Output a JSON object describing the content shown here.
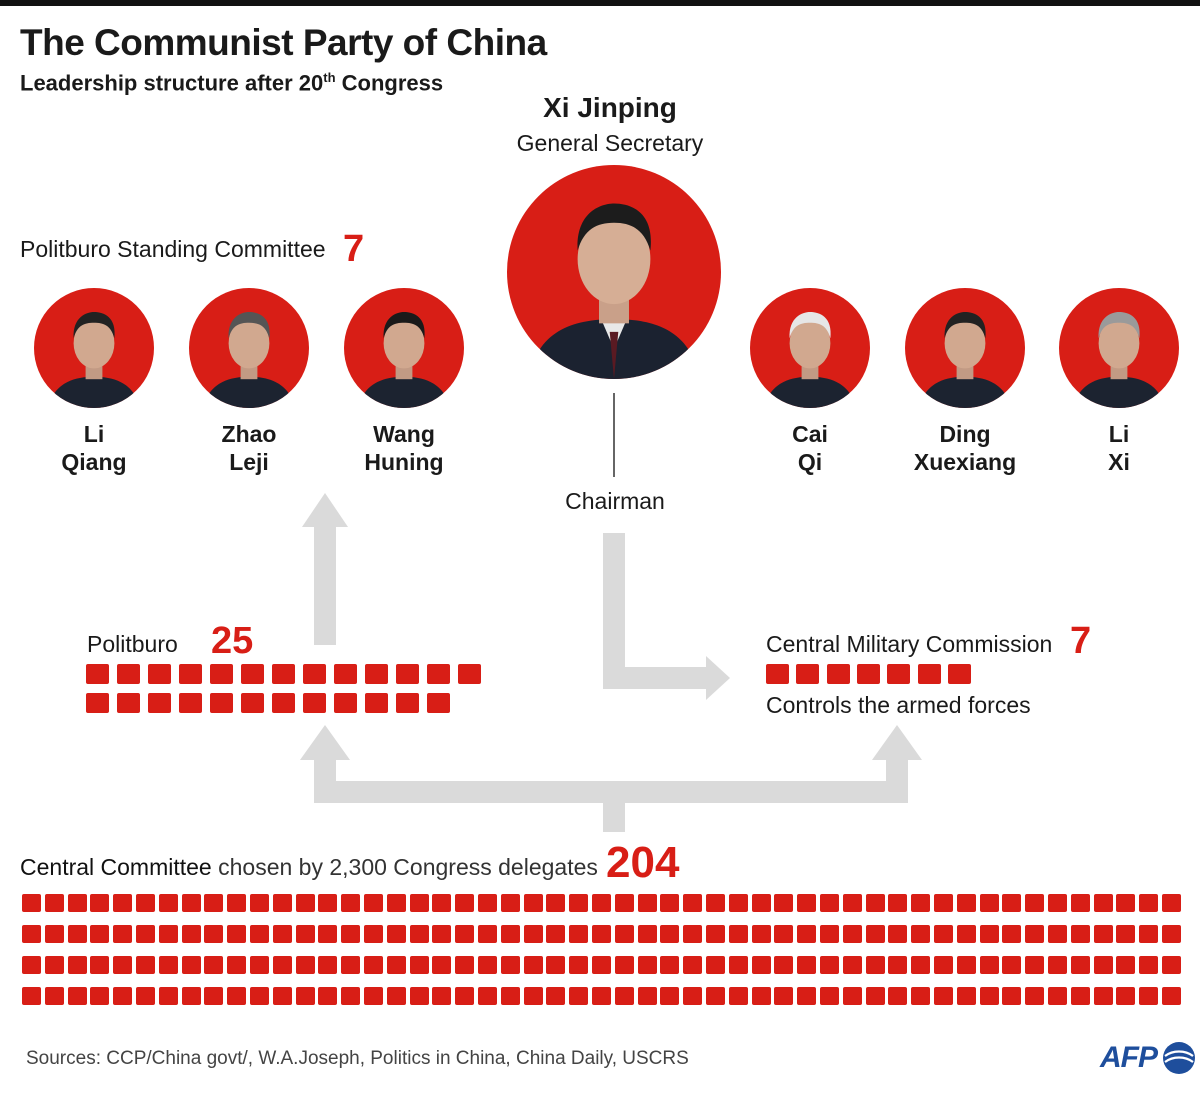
{
  "title": "The Communist Party of China",
  "subtitle": {
    "text": "Leadership structure after 20",
    "sup": "th",
    "tail": " Congress"
  },
  "leader": {
    "name": "Xi Jinping",
    "role": "General Secretary",
    "chairman_label": "Chairman"
  },
  "psc": {
    "label": "Politburo Standing Committee",
    "count": "7",
    "members": [
      {
        "first": "Li",
        "last": "Qiang"
      },
      {
        "first": "Zhao",
        "last": "Leji"
      },
      {
        "first": "Wang",
        "last": "Huning"
      },
      {
        "first": "Cai",
        "last": "Qi"
      },
      {
        "first": "Ding",
        "last": "Xuexiang"
      },
      {
        "first": "Li",
        "last": "Xi"
      }
    ]
  },
  "politburo": {
    "label": "Politburo",
    "count": "25",
    "members": 25
  },
  "cmc": {
    "label": "Central Military Commission",
    "count": "7",
    "members": 7,
    "note": "Controls the armed forces"
  },
  "central_committee": {
    "label_bold": "Central Committee",
    "label_rest": " chosen by 2,300 Congress delegates",
    "count": "204",
    "members": 204
  },
  "sources": "Sources: CCP/China govt/, W.A.Joseph, Politics in China, China Daily, USCRS",
  "logo": {
    "text": "AFP",
    "icon": "afp-logo-icon"
  },
  "colors": {
    "accent": "#d81e16",
    "arrow": "#dadada",
    "logo": "#1e4e9c"
  }
}
